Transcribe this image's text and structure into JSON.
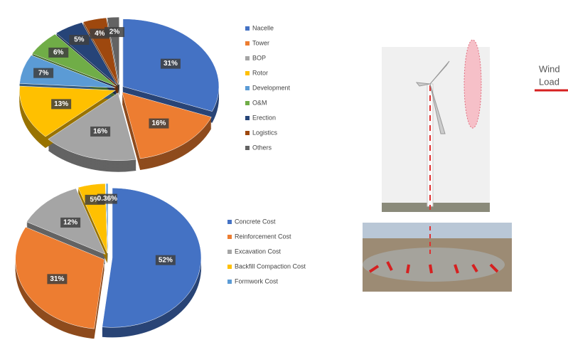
{
  "chart_data": [
    {
      "type": "pie",
      "categories": [
        "Nacelle",
        "Tower",
        "BOP",
        "Rotor",
        "Development",
        "O&M",
        "Erection",
        "Logistics",
        "Others"
      ],
      "values": [
        31,
        16,
        16,
        13,
        7,
        6,
        5,
        4,
        2
      ],
      "value_labels": [
        "31%",
        "16%",
        "16%",
        "13%",
        "7%",
        "6%",
        "5%",
        "4%",
        "2%"
      ],
      "colors": [
        "#4472c4",
        "#ed7d31",
        "#a5a5a5",
        "#ffc000",
        "#5b9bd5",
        "#70ad47",
        "#264478",
        "#9e480e",
        "#636363"
      ],
      "legend": "right"
    },
    {
      "type": "pie",
      "categories": [
        "Concrete Cost",
        "Reinforcement Cost",
        "Excavation Cost",
        "Backfill Compaction Cost",
        "Formwork Cost"
      ],
      "values": [
        52,
        31,
        12,
        5,
        0.36
      ],
      "value_labels": [
        "52%",
        "31%",
        "12%",
        "5%",
        "0.36%"
      ],
      "colors": [
        "#4472c4",
        "#ed7d31",
        "#a5a5a5",
        "#ffc000",
        "#5b9bd5"
      ],
      "legend": "right"
    }
  ],
  "wind_label": {
    "line1": "Wind",
    "line2": "Load"
  }
}
